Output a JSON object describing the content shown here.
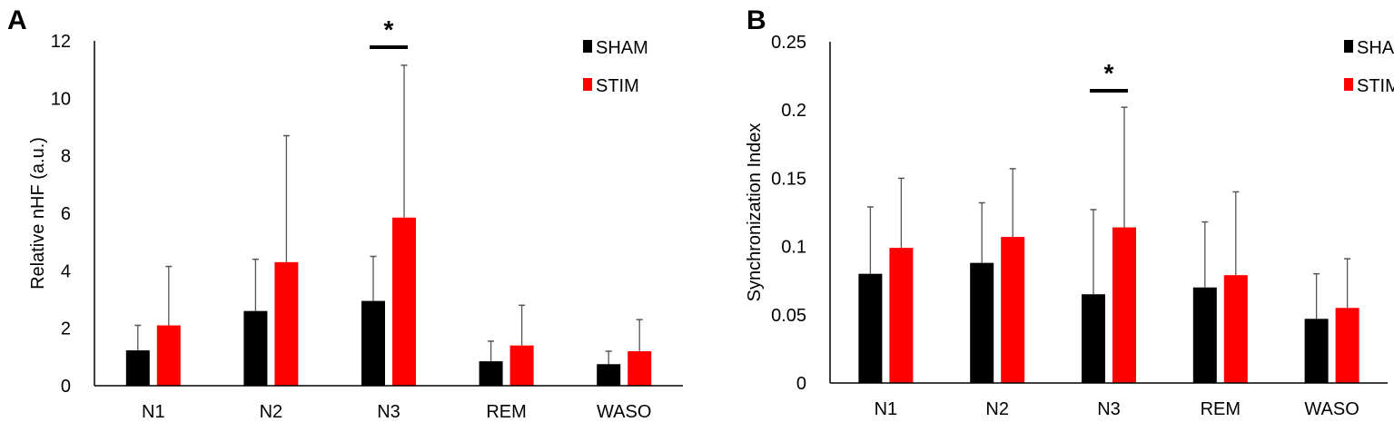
{
  "chart_data": [
    {
      "type": "bar",
      "panel_label": "A",
      "title": "",
      "xlabel": "",
      "ylabel": "Relative nHF (a.u.)",
      "ylim": [
        0,
        12
      ],
      "yticks": [
        "0",
        "2",
        "4",
        "6",
        "8",
        "10",
        "12"
      ],
      "ytick_values": [
        0,
        2,
        4,
        6,
        8,
        10,
        12
      ],
      "categories": [
        "N1",
        "N2",
        "N3",
        "REM",
        "WASO"
      ],
      "series": [
        {
          "name": "SHAM",
          "color": "#000000",
          "values": [
            1.23,
            2.6,
            2.95,
            0.85,
            0.75
          ],
          "error_upper": [
            2.1,
            4.4,
            4.5,
            1.55,
            1.2
          ]
        },
        {
          "name": "STIM",
          "color": "#ff0000",
          "values": [
            2.1,
            4.3,
            5.85,
            1.4,
            1.2
          ],
          "error_upper": [
            4.15,
            8.7,
            11.15,
            2.8,
            2.3
          ]
        }
      ],
      "annotation": {
        "text": "*",
        "category": "N3"
      },
      "legend": "top-right",
      "grid": false
    },
    {
      "type": "bar",
      "panel_label": "B",
      "title": "",
      "xlabel": "",
      "ylabel": "Synchronization Index",
      "ylim": [
        0,
        0.25
      ],
      "yticks": [
        "0",
        "0.05",
        "0.1",
        "0.15",
        "0.2",
        "0.25"
      ],
      "ytick_values": [
        0,
        0.05,
        0.1,
        0.15,
        0.2,
        0.25
      ],
      "categories": [
        "N1",
        "N2",
        "N3",
        "REM",
        "WASO"
      ],
      "series": [
        {
          "name": "SHAM",
          "color": "#000000",
          "values": [
            0.08,
            0.088,
            0.065,
            0.07,
            0.047
          ],
          "error_upper": [
            0.129,
            0.132,
            0.127,
            0.118,
            0.08
          ]
        },
        {
          "name": "STIM",
          "color": "#ff0000",
          "values": [
            0.099,
            0.107,
            0.114,
            0.079,
            0.055
          ],
          "error_upper": [
            0.15,
            0.157,
            0.202,
            0.14,
            0.091
          ]
        }
      ],
      "annotation": {
        "text": "*",
        "category": "N3"
      },
      "legend": "top-right",
      "grid": false
    }
  ]
}
